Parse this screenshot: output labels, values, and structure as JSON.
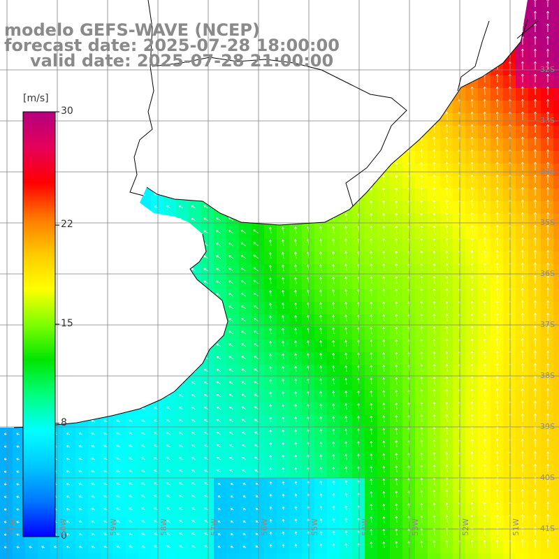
{
  "title": {
    "line1": "modelo GEFS-WAVE (NCEP)",
    "line2": "forecast date: 2025-07-28 18:00:00",
    "line3": "valid date: 2025-07-28 21:00:00"
  },
  "colorbar": {
    "unit": "[m/s]",
    "min": 0,
    "max": 30,
    "ticks": [
      {
        "value": 30,
        "label": "30"
      },
      {
        "value": 22,
        "label": "22"
      },
      {
        "value": 15,
        "label": "15"
      },
      {
        "value": 8,
        "label": "8"
      },
      {
        "value": 0,
        "label": "0"
      }
    ],
    "stops": [
      "#0000ff",
      "#0078ff",
      "#00c8ff",
      "#00ffff",
      "#00ff7f",
      "#00e600",
      "#7fff00",
      "#ffff00",
      "#ffc800",
      "#ff7800",
      "#ff0000",
      "#e6005a",
      "#b4007f"
    ]
  },
  "lat_labels": [
    "32S",
    "33S",
    "34S",
    "35S",
    "36S",
    "37S",
    "38S",
    "39S",
    "40S",
    "41S"
  ],
  "lon_labels": [
    "61W",
    "60W",
    "59W",
    "58W",
    "57W",
    "56W",
    "55W",
    "54W",
    "53W",
    "52W",
    "51W"
  ],
  "map": {
    "variable": "wind speed",
    "land_color": "#ffffff",
    "coast_color": "#000000",
    "grid_color": "#808080",
    "arrow_color": "#ffffff"
  }
}
